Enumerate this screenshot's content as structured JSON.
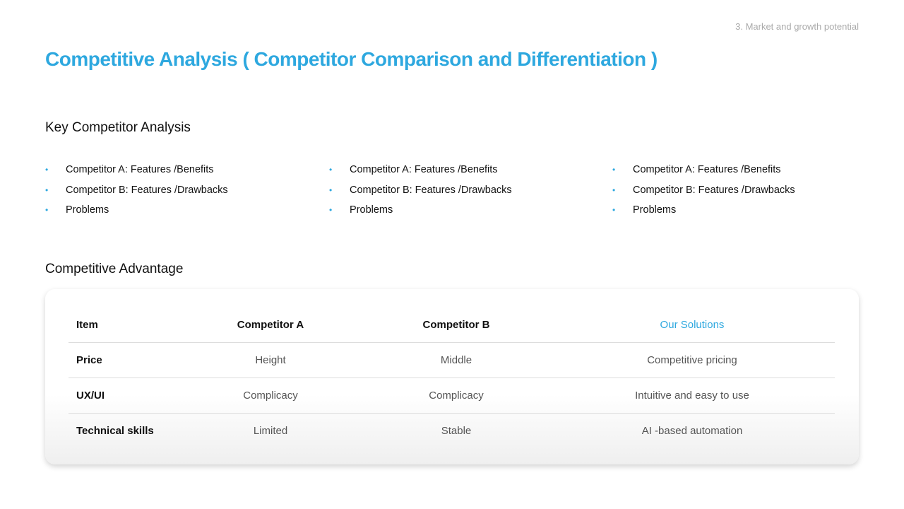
{
  "header": {
    "title": "Competitive Analysis ( Competitor Comparison and Differentiation )",
    "section": "3. Market and growth potential"
  },
  "key_analysis": {
    "heading": "Key Competitor Analysis",
    "columns": [
      [
        "Competitor A: Features /Benefits",
        "Competitor B: Features /Drawbacks",
        "Problems"
      ],
      [
        "Competitor A: Features /Benefits",
        "Competitor B: Features /Drawbacks",
        "Problems"
      ],
      [
        "Competitor A: Features /Benefits",
        "Competitor B: Features /Drawbacks",
        "Problems"
      ]
    ]
  },
  "advantage": {
    "heading": "Competitive Advantage",
    "headers": [
      "Item",
      "Competitor A",
      "Competitor B",
      "Our Solutions"
    ],
    "rows": [
      [
        "Price",
        "Height",
        "Middle",
        "Competitive pricing"
      ],
      [
        "UX/UI",
        "Complicacy",
        "Complicacy",
        "Intuitive and easy to use"
      ],
      [
        "Technical skills",
        "Limited",
        "Stable",
        "AI -based automation"
      ]
    ]
  },
  "colors": {
    "accent": "#2ea8df"
  }
}
